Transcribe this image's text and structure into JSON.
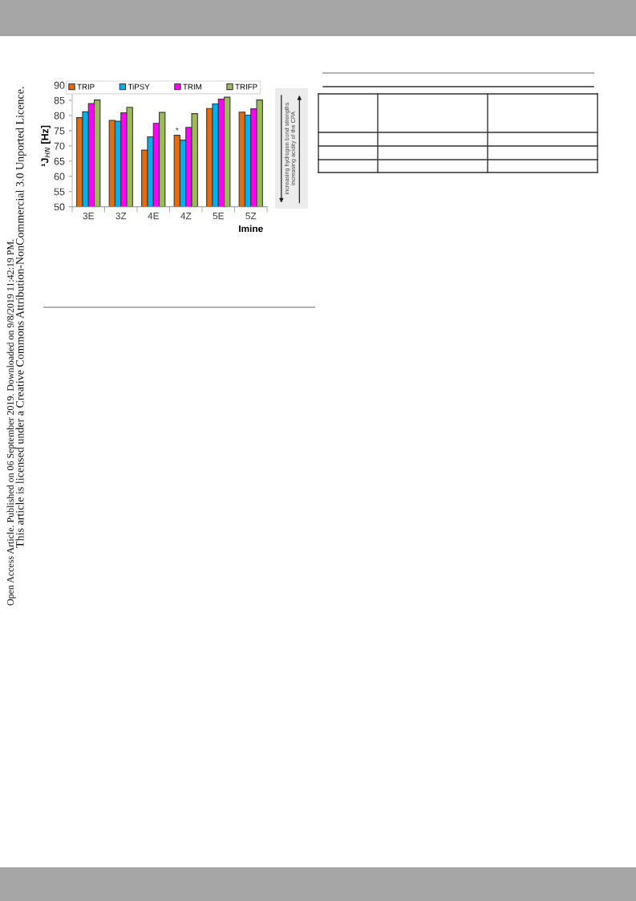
{
  "chart_data": {
    "type": "bar",
    "ylabel": "¹J$_{HN}$ [Hz]",
    "xlabel": "Imine",
    "categories": [
      "3E",
      "3Z",
      "4E",
      "4Z",
      "5E",
      "5Z"
    ],
    "series": [
      {
        "name": "TRIP",
        "color": "#e46c0a",
        "values": [
          79.3,
          78.4,
          68.6,
          73.5,
          82.3,
          81.1
        ]
      },
      {
        "name": "TiPSY",
        "color": "#00b0f0",
        "values": [
          81.2,
          78.1,
          73.0,
          71.9,
          83.8,
          80.1
        ]
      },
      {
        "name": "TRIM",
        "color": "#ff00ff",
        "values": [
          83.9,
          80.9,
          77.4,
          76.1,
          85.4,
          82.2
        ]
      },
      {
        "name": "TRIFP",
        "color": "#9bbb59",
        "values": [
          85.1,
          82.7,
          81.0,
          80.6,
          86.0,
          85.1
        ]
      }
    ],
    "ylim": [
      50,
      90
    ],
    "yticks": [
      50,
      55,
      60,
      65,
      70,
      75,
      80,
      85,
      90
    ],
    "legend": "top",
    "annotations": [
      {
        "text": "*",
        "x": "4Z",
        "y": 73.5
      },
      "increasing hydrogen bond strengths",
      "increasing acidity of the CPA",
      "Open Access Article. Published on 06 September 2019. Downloaded on 9/8/2019 11:42:19 PM.",
      "This article is licensed under a Creative Commons Attribution-NonCommercial 3.0 Unported Licence."
    ]
  }
}
